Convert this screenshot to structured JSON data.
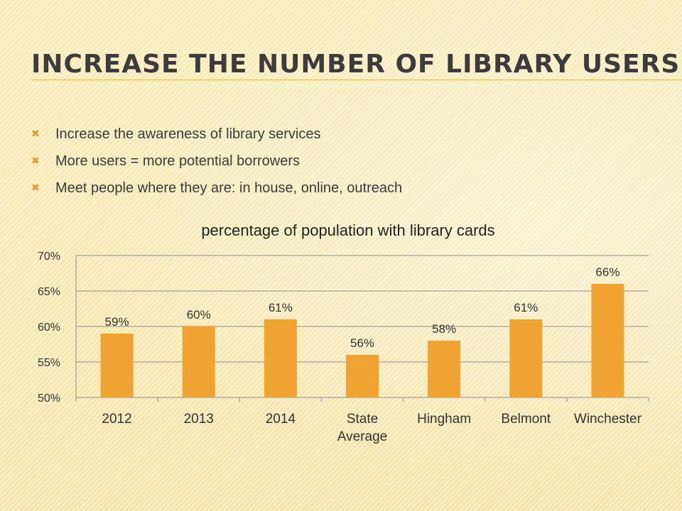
{
  "slide": {
    "title": "Increase the number of library users",
    "bullets": [
      "Increase the awareness of library services",
      "More users = more potential borrowers",
      "Meet people where they are: in house, online, outreach"
    ],
    "bullet_icon": "x-mark-icon",
    "accent_color": "#e49a2c"
  },
  "chart_data": {
    "type": "bar",
    "title": "percentage of population with library cards",
    "categories": [
      [
        "2012"
      ],
      [
        "2013"
      ],
      [
        "2014"
      ],
      [
        "State",
        "Average"
      ],
      [
        "Hingham"
      ],
      [
        "Belmont"
      ],
      [
        "Winchester"
      ]
    ],
    "values": [
      59,
      60,
      61,
      56,
      58,
      61,
      66
    ],
    "data_labels": [
      "59%",
      "60%",
      "61%",
      "56%",
      "58%",
      "61%",
      "66%"
    ],
    "ylim": [
      50,
      70
    ],
    "yticks": [
      50,
      55,
      60,
      65,
      70
    ],
    "ytick_labels": [
      "50%",
      "55%",
      "60%",
      "65%",
      "70%"
    ],
    "grid": true,
    "legend": "none",
    "bar_color": "#f0a332"
  }
}
